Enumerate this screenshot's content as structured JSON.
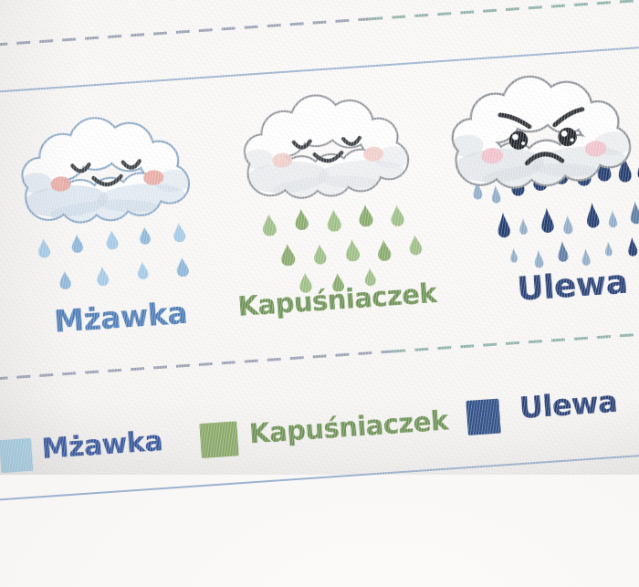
{
  "poster": {
    "cards": [
      {
        "label": "Mżawka",
        "mood": "happy",
        "label_color": "#4d7cb8",
        "outline_color": "#8aa9c8",
        "shade_color": "#c7d7e7",
        "cheek_color": "#e9a49c",
        "drop_colors": [
          "#a4cae8",
          "#8cb6da"
        ],
        "drop_count": 9
      },
      {
        "label": "Kapuśniaczek",
        "mood": "happy",
        "label_color": "#6d9355",
        "outline_color": "#93979e",
        "shade_color": "#dde1e6",
        "cheek_color": "#f2cbc6",
        "drop_colors": [
          "#9dbf86",
          "#87ab6c"
        ],
        "drop_count": 13
      },
      {
        "label": "Ulewa",
        "mood": "angry",
        "label_color": "#263f76",
        "outline_color": "#8f939a",
        "shade_color": "#d6dbe1",
        "cheek_color": "#f3bfc9",
        "drop_colors": [
          "#1f3a6e",
          "#8fadc9",
          "#5a7ba3"
        ],
        "drop_count": 22
      }
    ],
    "legend": [
      {
        "label": "Mżawka",
        "swatch_color": "#a8d2e8",
        "text_color": "#33559d"
      },
      {
        "label": "Kapuśniaczek",
        "swatch_color": "#8aab68",
        "text_color": "#6d9355"
      },
      {
        "label": "Ulewa",
        "swatch_color": "#2f4f88",
        "text_color": "#263f76"
      }
    ],
    "lines": {
      "dashed_color": "#9ba2b6",
      "dashed_color_right": "#8fb3ac",
      "solid_color": "#8ba6c9"
    }
  }
}
